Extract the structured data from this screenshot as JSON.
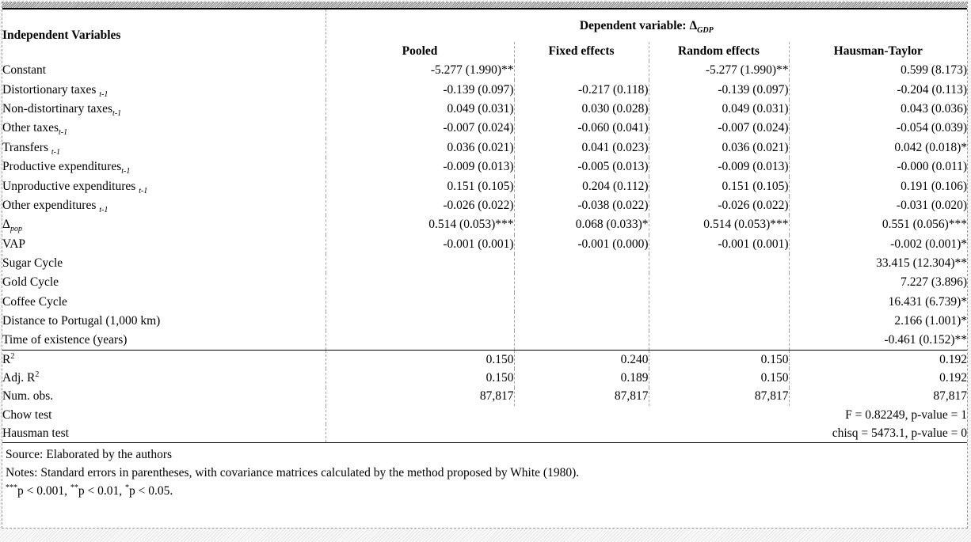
{
  "table": {
    "row_header": "Independent Variables",
    "dep_prefix": "Dependent variable: ",
    "dep_var": "Δ_{GDP}",
    "columns": [
      "Pooled",
      "Fixed effects",
      "Random effects",
      "Hausman-Taylor"
    ],
    "rows": [
      {
        "label": "Constant",
        "values": [
          "-5.277 (1.990)**",
          "",
          "-5.277 (1.990)**",
          "0.599 (8.173)"
        ]
      },
      {
        "label": "Distortionary taxes _{t-1}",
        "values": [
          "-0.139 (0.097)",
          "-0.217 (0.118)",
          "-0.139 (0.097)",
          "-0.204 (0.113)"
        ]
      },
      {
        "label": "Non-distortinary taxes_{t-1}",
        "values": [
          "0.049 (0.031)",
          "0.030 (0.028)",
          "0.049 (0.031)",
          "0.043 (0.036)"
        ]
      },
      {
        "label": "Other taxes_{t-1}",
        "values": [
          "-0.007 (0.024)",
          "-0.060 (0.041)",
          "-0.007 (0.024)",
          "-0.054 (0.039)"
        ]
      },
      {
        "label": "Transfers _{t-1}",
        "values": [
          "0.036 (0.021)",
          "0.041 (0.023)",
          "0.036 (0.021)",
          "0.042 (0.018)*"
        ]
      },
      {
        "label": "Productive expenditures_{t-1}",
        "values": [
          "-0.009 (0.013)",
          "-0.005 (0.013)",
          "-0.009 (0.013)",
          "-0.000 (0.011)"
        ]
      },
      {
        "label": "Unproductive expenditures _{t-1}",
        "values": [
          "0.151 (0.105)",
          "0.204 (0.112)",
          "0.151 (0.105)",
          "0.191 (0.106)"
        ]
      },
      {
        "label": "Other expenditures _{t-1}",
        "values": [
          "-0.026 (0.022)",
          "-0.038 (0.022)",
          "-0.026 (0.022)",
          "-0.031 (0.020)"
        ]
      },
      {
        "label": "Δ_{pop}",
        "values": [
          "0.514 (0.053)***",
          "0.068 (0.033)*",
          "0.514 (0.053)***",
          "0.551 (0.056)***"
        ]
      },
      {
        "label": "VAP",
        "values": [
          "-0.001 (0.001)",
          "-0.001 (0.000)",
          "-0.001 (0.001)",
          "-0.002 (0.001)*"
        ]
      },
      {
        "label": "Sugar Cycle",
        "values": [
          "",
          "",
          "",
          "33.415 (12.304)**"
        ]
      },
      {
        "label": "Gold Cycle",
        "values": [
          "",
          "",
          "",
          "7.227 (3.896)"
        ]
      },
      {
        "label": "Coffee Cycle",
        "values": [
          "",
          "",
          "",
          "16.431 (6.739)*"
        ]
      },
      {
        "label": "Distance to Portugal (1,000 km)",
        "values": [
          "",
          "",
          "",
          "2.166 (1.001)*"
        ]
      },
      {
        "label": "Time of existence (years)",
        "values": [
          "",
          "",
          "",
          "-0.461 (0.152)**"
        ]
      }
    ],
    "stats": [
      {
        "label": "R^{2}",
        "values": [
          "0.150",
          "0.240",
          "0.150",
          "0.192"
        ]
      },
      {
        "label": "Adj. R^{2}",
        "values": [
          "0.150",
          "0.189",
          "0.150",
          "0.192"
        ]
      },
      {
        "label": "Num. obs.",
        "values": [
          "87,817",
          "87,817",
          "87,817",
          "87,817"
        ]
      },
      {
        "label": "Chow test",
        "wide_value": "F = 0.82249, p-value = 1"
      },
      {
        "label": "Hausman test",
        "wide_value": "chisq = 5473.1, p-value = 0"
      }
    ]
  },
  "notes": {
    "source": "Source: Elaborated by the authors",
    "notes": "Notes: Standard errors in parentheses, with covariance matrices calculated by the method proposed by White (1980).",
    "significance": "^{***}p < 0.001, ^{**}p < 0.01, ^{*}p < 0.05."
  }
}
